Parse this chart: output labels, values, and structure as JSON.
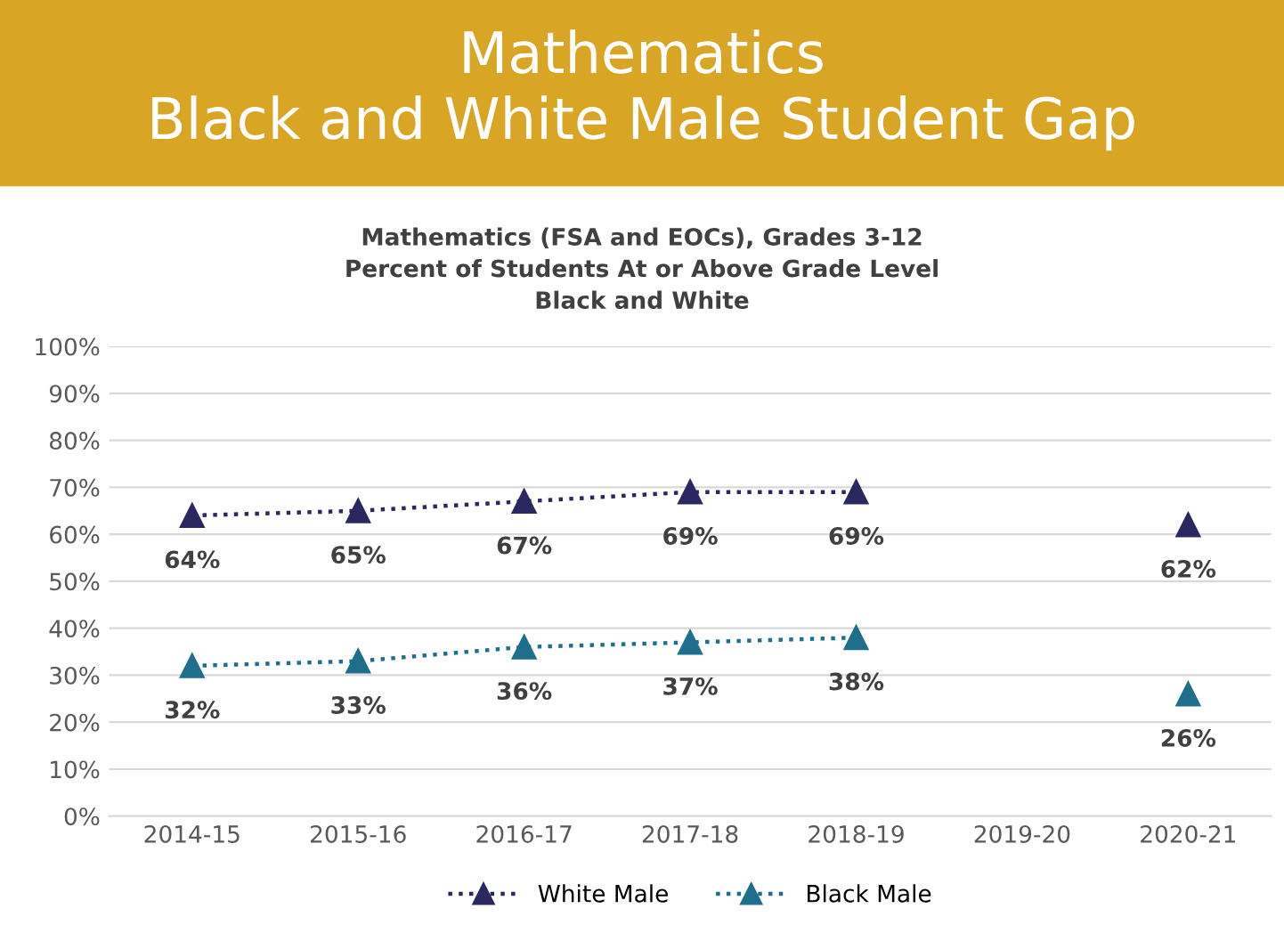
{
  "chart_data": {
    "type": "line",
    "title": "Mathematics\nBlack and White Male Student Gap",
    "subtitle": "Mathematics (FSA and EOCs), Grades 3-12\nPercent of Students At or Above Grade Level\nBlack and White",
    "categories": [
      "2014-15",
      "2015-16",
      "2016-17",
      "2017-18",
      "2018-19",
      "2019-20",
      "2020-21"
    ],
    "series": [
      {
        "name": "White Male",
        "color": "#2b2760",
        "values": [
          64,
          65,
          67,
          69,
          69,
          null,
          62
        ],
        "value_labels": [
          "64%",
          "65%",
          "67%",
          "69%",
          "69%",
          null,
          "62%"
        ]
      },
      {
        "name": "Black Male",
        "color": "#1f6e8c",
        "values": [
          32,
          33,
          36,
          37,
          38,
          null,
          26
        ],
        "value_labels": [
          "32%",
          "33%",
          "36%",
          "37%",
          "38%",
          null,
          "26%"
        ]
      }
    ],
    "ylim": [
      0,
      100
    ],
    "yticks": [
      {
        "value": 0,
        "label": "0%"
      },
      {
        "value": 10,
        "label": "10%"
      },
      {
        "value": 20,
        "label": "20%"
      },
      {
        "value": 30,
        "label": "30%"
      },
      {
        "value": 40,
        "label": "40%"
      },
      {
        "value": 50,
        "label": "50%"
      },
      {
        "value": 60,
        "label": "60%"
      },
      {
        "value": 70,
        "label": "70%"
      },
      {
        "value": 80,
        "label": "80%"
      },
      {
        "value": 90,
        "label": "90%"
      },
      {
        "value": 100,
        "label": "100%"
      }
    ],
    "grid": "y",
    "legend": "bottom",
    "marker": "triangle",
    "line_style": "dotted"
  }
}
